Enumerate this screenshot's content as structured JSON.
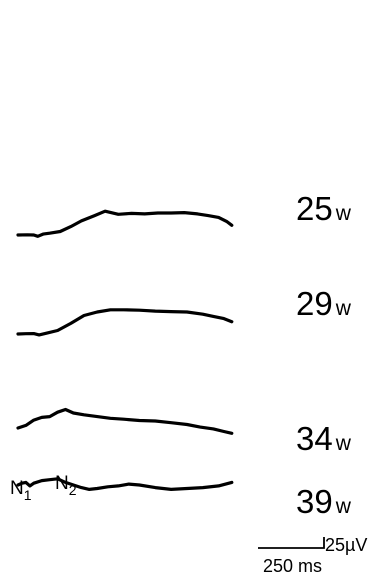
{
  "chart_data": {
    "type": "line",
    "title": "",
    "description_units": {
      "x": "ms",
      "y": "µV"
    },
    "scale_bar": {
      "amplitude_label": "25µV",
      "time_label": "250 ms",
      "amplitude_value": 25,
      "time_value": 250
    },
    "peak_labels": [
      {
        "name": "N",
        "sub": "1"
      },
      {
        "name": "N",
        "sub": "2"
      }
    ],
    "series": [
      {
        "name": "25w",
        "age_number": "25",
        "age_unit": "w",
        "x": [
          0,
          35,
          60,
          75,
          95,
          120,
          160,
          200,
          240,
          290,
          330,
          380,
          430,
          480,
          530,
          580,
          630,
          680,
          720,
          760,
          790,
          810
        ],
        "y": [
          0,
          0.4,
          0,
          -3,
          2,
          4,
          8,
          19,
          32,
          44,
          54,
          47,
          49,
          48,
          50,
          50,
          51,
          48,
          44,
          40,
          31,
          22
        ]
      },
      {
        "name": "29w",
        "age_number": "29",
        "age_unit": "w",
        "x": [
          0,
          30,
          60,
          80,
          110,
          150,
          200,
          250,
          300,
          350,
          400,
          460,
          520,
          580,
          640,
          700,
          740,
          780,
          810
        ],
        "y": [
          0,
          0.6,
          1,
          -2,
          2,
          8,
          24,
          42,
          50,
          55,
          55,
          54,
          52,
          51,
          50,
          45,
          40,
          35,
          28
        ]
      },
      {
        "name": "34w",
        "age_number": "34",
        "age_unit": "w",
        "x": [
          0,
          30,
          60,
          90,
          120,
          150,
          180,
          210,
          250,
          300,
          350,
          400,
          460,
          520,
          580,
          640,
          690,
          740,
          780,
          810
        ],
        "y": [
          0,
          6,
          18,
          24,
          26,
          36,
          42,
          34,
          30,
          26,
          22,
          20,
          17,
          16,
          12,
          8,
          2,
          -2,
          -8,
          -12
        ]
      },
      {
        "name": "39w",
        "age_number": "39",
        "age_unit": "w",
        "x": [
          0,
          15,
          30,
          45,
          60,
          90,
          120,
          150,
          180,
          210,
          240,
          270,
          300,
          340,
          380,
          420,
          460,
          520,
          580,
          640,
          700,
          760,
          810
        ],
        "y": [
          0,
          4,
          6,
          -2,
          4,
          10,
          12,
          14,
          6,
          0,
          -6,
          -10,
          -8,
          -4,
          -2,
          2,
          0,
          -6,
          -10,
          -8,
          -6,
          -2,
          6
        ]
      }
    ]
  }
}
